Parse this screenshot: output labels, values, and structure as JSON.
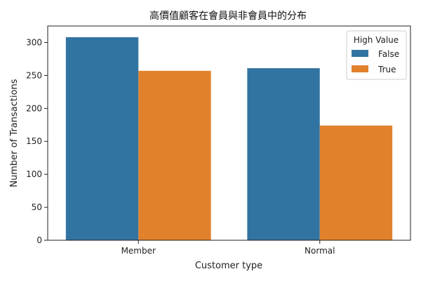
{
  "chart_data": {
    "type": "bar",
    "title": "高價值顧客在會員與非會員中的分布",
    "xlabel": "Customer type",
    "ylabel": "Number of Transactions",
    "categories": [
      "Member",
      "Normal"
    ],
    "series": [
      {
        "name": "False",
        "values": [
          308,
          261
        ],
        "color": "#3274a1"
      },
      {
        "name": "True",
        "values": [
          257,
          174
        ],
        "color": "#e1812c"
      }
    ],
    "ylim": [
      0,
      325
    ],
    "yticks": [
      0,
      50,
      100,
      150,
      200,
      250,
      300
    ],
    "grid": false,
    "legend": {
      "title": "High Value",
      "placement": "top-right"
    }
  }
}
